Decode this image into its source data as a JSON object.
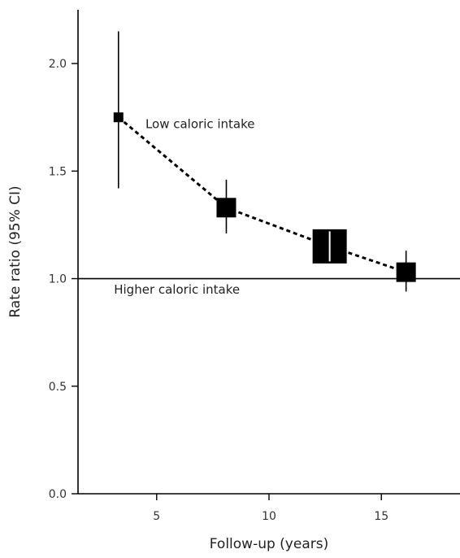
{
  "chart_data": {
    "type": "scatter",
    "xlabel": "Follow-up (years)",
    "ylabel": "Rate ratio (95% CI)",
    "xlim": [
      1.5,
      18.5
    ],
    "ylim": [
      0,
      2.25
    ],
    "x_ticks": [
      5,
      10,
      15
    ],
    "x_tick_labels": [
      "5",
      "10",
      "15"
    ],
    "y_ticks": [
      0.0,
      0.5,
      1.0,
      1.5,
      2.0
    ],
    "y_tick_labels": [
      "0.0",
      "0.5",
      "1.0",
      "1.5",
      "2.0"
    ],
    "reference_line": 1.0,
    "grid": false,
    "point_color": "#000000",
    "ci_color": "#000000",
    "series": [
      {
        "points": [
          {
            "x": 3.3,
            "y": 1.75,
            "lower": 1.42,
            "upper": 2.15,
            "weight": 1
          },
          {
            "x": 8.1,
            "y": 1.33,
            "lower": 1.21,
            "upper": 1.46,
            "weight": 2
          },
          {
            "x": 12.7,
            "y": 1.15,
            "lower": 1.08,
            "upper": 1.22,
            "weight": 3.5
          },
          {
            "x": 16.1,
            "y": 1.03,
            "lower": 0.94,
            "upper": 1.13,
            "weight": 2
          }
        ]
      }
    ],
    "annotations": [
      {
        "text": "Low caloric intake",
        "x": 4.5,
        "y": 1.7
      },
      {
        "text": "Higher caloric intake",
        "x": 3.1,
        "y": 0.93
      }
    ]
  }
}
